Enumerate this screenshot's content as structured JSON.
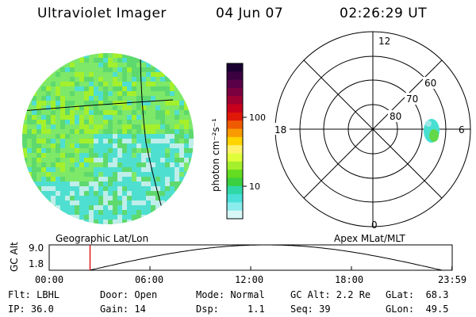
{
  "header": {
    "instrument": "Ultraviolet Imager",
    "date": "04 Jun 07",
    "time": "02:26:29 UT"
  },
  "colorbar": {
    "unit_label": "photon cm⁻²s⁻¹",
    "ticks": [
      "100",
      "10"
    ],
    "colors": [
      "#1a0032",
      "#3a0040",
      "#5a0048",
      "#7a0040",
      "#a00030",
      "#c8001c",
      "#e01808",
      "#f05a00",
      "#f89a00",
      "#ffd400",
      "#fff26a",
      "#e0ff3a",
      "#a4f02c",
      "#64dc20",
      "#3ad040",
      "#30d8a8",
      "#4ae0d8",
      "#8aecec",
      "#d8f8f8"
    ]
  },
  "geo_panel": {
    "caption": "Geographic Lat/Lon",
    "fill_colors": [
      "#4fdfd0",
      "#7ee868",
      "#a4f02c",
      "#5ed96e",
      "#bfeeea"
    ]
  },
  "polar_panel": {
    "caption": "Apex MLat/MLT",
    "mlt_labels": {
      "top": "12",
      "left": "18",
      "right": "6",
      "bottom": "0"
    },
    "lat_labels": [
      "80",
      "70",
      "60"
    ]
  },
  "altitude_plot": {
    "ylabel": "GC Alt",
    "ymax_label": "9.0",
    "ymin_label": "1.8",
    "x_ticks": [
      "00:00",
      "06:00",
      "12:00",
      "18:00",
      "23:59"
    ],
    "cursor_time": "02:26",
    "cursor_color": "#e00000"
  },
  "status": {
    "row1": {
      "flt": "Flt: LBHL",
      "door": "Door: Open",
      "mode": "Mode: Normal",
      "gcalt": "GC Alt: 2.2 Re",
      "glat": "GLat:  68.3"
    },
    "row2": {
      "ip": "IP: 36.0",
      "gain": "Gain: 14",
      "dsp": "Dsp:     1.1",
      "seq": "Seq: 39",
      "glon": "GLon:  49.5"
    }
  }
}
